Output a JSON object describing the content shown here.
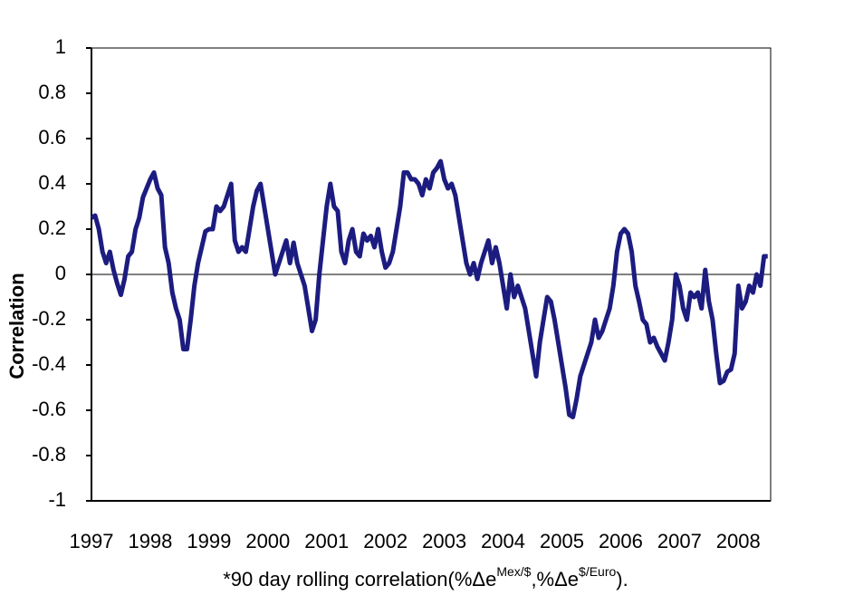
{
  "chart_data": {
    "type": "line",
    "ylabel": "Correlation",
    "xlabel": [
      "*90 day rolling correlation(%Δe",
      "Mex/$",
      ",%Δe",
      "$/Euro",
      ")."
    ],
    "xlim": [
      1997,
      2008.55
    ],
    "xticks": [
      1997,
      1998,
      1999,
      2000,
      2001,
      2002,
      2003,
      2004,
      2005,
      2006,
      2007,
      2008
    ],
    "ylim": [
      -1,
      1
    ],
    "yticks": [
      1,
      0.8,
      0.6,
      0.4,
      0.2,
      0,
      -0.2,
      -0.4,
      -0.6,
      -0.8,
      -1
    ],
    "zero_line": true,
    "series": [
      {
        "color": "#1c1c80",
        "x": [
          1997,
          1997.0625,
          1997.125,
          1997.1875,
          1997.25,
          1997.3125,
          1997.375,
          1997.4375,
          1997.5,
          1997.5625,
          1997.625,
          1997.6875,
          1997.75,
          1997.8125,
          1997.875,
          1997.9375,
          1998,
          1998.0625,
          1998.125,
          1998.1875,
          1998.25,
          1998.3125,
          1998.375,
          1998.4375,
          1998.5,
          1998.5625,
          1998.625,
          1998.6875,
          1998.75,
          1998.8125,
          1998.875,
          1998.9375,
          1999,
          1999.0625,
          1999.125,
          1999.1875,
          1999.25,
          1999.3125,
          1999.375,
          1999.4375,
          1999.5,
          1999.5625,
          1999.625,
          1999.6875,
          1999.75,
          1999.8125,
          1999.875,
          1999.9375,
          2000,
          2000.0625,
          2000.125,
          2000.1875,
          2000.25,
          2000.3125,
          2000.375,
          2000.4375,
          2000.5,
          2000.5625,
          2000.625,
          2000.6875,
          2000.75,
          2000.8125,
          2000.875,
          2000.9375,
          2001,
          2001.0625,
          2001.125,
          2001.1875,
          2001.25,
          2001.3125,
          2001.375,
          2001.4375,
          2001.5,
          2001.5625,
          2001.625,
          2001.6875,
          2001.75,
          2001.8125,
          2001.875,
          2001.9375,
          2002,
          2002.0625,
          2002.125,
          2002.1875,
          2002.25,
          2002.3125,
          2002.375,
          2002.4375,
          2002.5,
          2002.5625,
          2002.625,
          2002.6875,
          2002.75,
          2002.8125,
          2002.875,
          2002.9375,
          2003,
          2003.0625,
          2003.125,
          2003.1875,
          2003.25,
          2003.3125,
          2003.375,
          2003.4375,
          2003.5,
          2003.5625,
          2003.625,
          2003.6875,
          2003.75,
          2003.8125,
          2003.875,
          2003.9375,
          2004,
          2004.0625,
          2004.125,
          2004.1875,
          2004.25,
          2004.3125,
          2004.375,
          2004.4375,
          2004.5,
          2004.5625,
          2004.625,
          2004.6875,
          2004.75,
          2004.8125,
          2004.875,
          2004.9375,
          2005,
          2005.0625,
          2005.125,
          2005.1875,
          2005.25,
          2005.3125,
          2005.375,
          2005.4375,
          2005.5,
          2005.5625,
          2005.625,
          2005.6875,
          2005.75,
          2005.8125,
          2005.875,
          2005.9375,
          2006,
          2006.0625,
          2006.125,
          2006.1875,
          2006.25,
          2006.3125,
          2006.375,
          2006.4375,
          2006.5,
          2006.5625,
          2006.625,
          2006.6875,
          2006.75,
          2006.8125,
          2006.875,
          2006.9375,
          2007,
          2007.0625,
          2007.125,
          2007.1875,
          2007.25,
          2007.3125,
          2007.375,
          2007.4375,
          2007.5,
          2007.5625,
          2007.625,
          2007.6875,
          2007.75,
          2007.8125,
          2007.875,
          2007.9375,
          2008,
          2008.0625,
          2008.125,
          2008.1875,
          2008.25,
          2008.3125,
          2008.375,
          2008.4375,
          2008.5
        ],
        "values": [
          0.25,
          0.26,
          0.2,
          0.1,
          0.05,
          0.1,
          0.02,
          -0.04,
          -0.09,
          -0.02,
          0.08,
          0.1,
          0.2,
          0.25,
          0.34,
          0.38,
          0.42,
          0.45,
          0.38,
          0.35,
          0.12,
          0.05,
          -0.08,
          -0.15,
          -0.2,
          -0.33,
          -0.33,
          -0.2,
          -0.05,
          0.05,
          0.12,
          0.19,
          0.2,
          0.2,
          0.3,
          0.28,
          0.3,
          0.35,
          0.4,
          0.15,
          0.1,
          0.12,
          0.1,
          0.2,
          0.3,
          0.37,
          0.4,
          0.3,
          0.2,
          0.1,
          0.0,
          0.05,
          0.1,
          0.15,
          0.05,
          0.14,
          0.05,
          0.0,
          -0.05,
          -0.15,
          -0.25,
          -0.2,
          0.0,
          0.15,
          0.3,
          0.4,
          0.3,
          0.28,
          0.1,
          0.05,
          0.15,
          0.2,
          0.1,
          0.08,
          0.18,
          0.15,
          0.17,
          0.12,
          0.2,
          0.1,
          0.03,
          0.05,
          0.1,
          0.2,
          0.3,
          0.45,
          0.45,
          0.42,
          0.42,
          0.4,
          0.35,
          0.42,
          0.38,
          0.45,
          0.47,
          0.5,
          0.42,
          0.38,
          0.4,
          0.35,
          0.25,
          0.15,
          0.05,
          0.0,
          0.05,
          -0.02,
          0.05,
          0.1,
          0.15,
          0.05,
          0.12,
          0.05,
          -0.05,
          -0.15,
          0.0,
          -0.1,
          -0.05,
          -0.1,
          -0.15,
          -0.25,
          -0.35,
          -0.45,
          -0.3,
          -0.2,
          -0.1,
          -0.12,
          -0.2,
          -0.3,
          -0.4,
          -0.5,
          -0.62,
          -0.63,
          -0.55,
          -0.45,
          -0.4,
          -0.35,
          -0.3,
          -0.2,
          -0.28,
          -0.25,
          -0.2,
          -0.15,
          -0.05,
          0.1,
          0.18,
          0.2,
          0.18,
          0.1,
          -0.05,
          -0.12,
          -0.2,
          -0.22,
          -0.3,
          -0.28,
          -0.32,
          -0.35,
          -0.38,
          -0.3,
          -0.2,
          0.0,
          -0.05,
          -0.15,
          -0.2,
          -0.08,
          -0.1,
          -0.08,
          -0.15,
          0.02,
          -0.12,
          -0.2,
          -0.35,
          -0.48,
          -0.47,
          -0.43,
          -0.42,
          -0.35,
          -0.05,
          -0.15,
          -0.12,
          -0.05,
          -0.08,
          0.0,
          -0.05,
          0.08,
          0.08
        ]
      }
    ]
  }
}
